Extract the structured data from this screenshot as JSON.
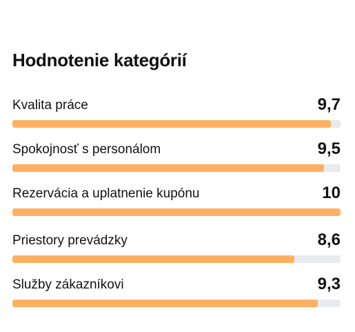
{
  "section": {
    "title": "Hodnotenie kategórií"
  },
  "categories": [
    {
      "label": "Kvalita práce",
      "score": "9,7",
      "fraction": 0.97
    },
    {
      "label": "Spokojnosť s personálom",
      "score": "9,5",
      "fraction": 0.95
    },
    {
      "label": "Rezervácia a uplatnenie kupónu",
      "score": "10",
      "fraction": 1.0
    },
    {
      "label": "Priestory prevádzky",
      "score": "8,6",
      "fraction": 0.86
    },
    {
      "label": "Služby zákazníkovi",
      "score": "9,3",
      "fraction": 0.93
    }
  ],
  "colors": {
    "bar_fill": "#fdb062",
    "bar_track": "#e8eaee"
  }
}
